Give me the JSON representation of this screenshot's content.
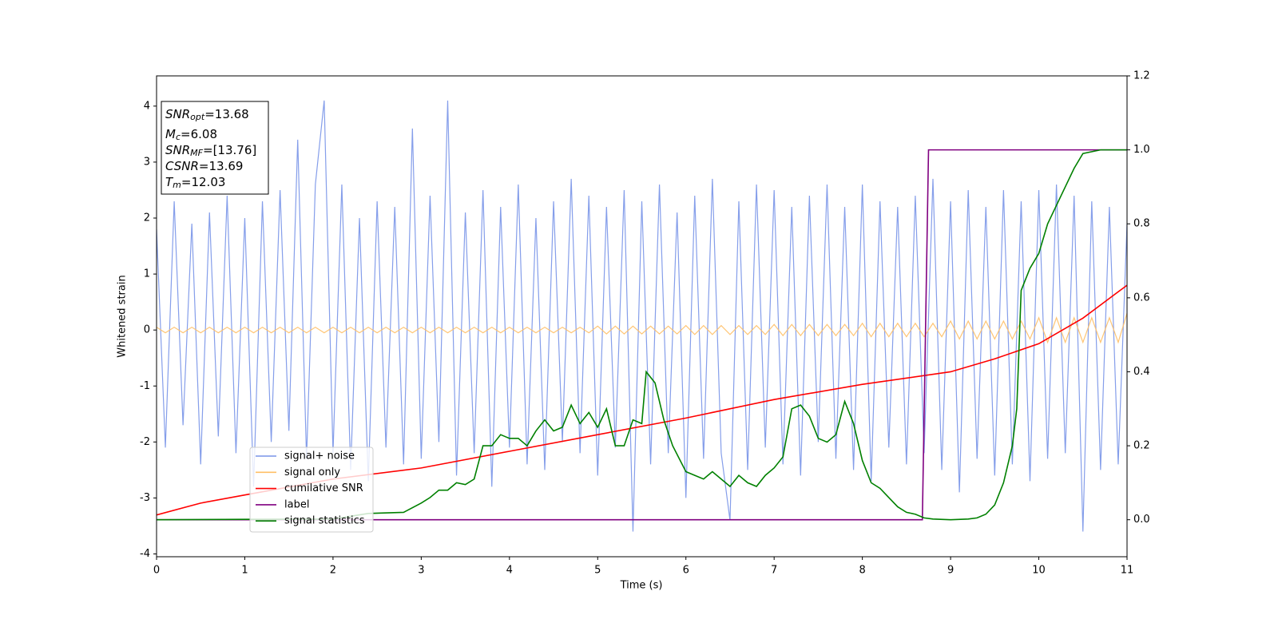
{
  "chart_data": {
    "type": "line",
    "xlabel": "Time (s)",
    "ylabel": "Whitened strain",
    "xlim": [
      0,
      11
    ],
    "ylim": [
      -4.05,
      4.54
    ],
    "y2lim": [
      -0.1,
      1.2
    ],
    "xticks": [
      0,
      1,
      2,
      3,
      4,
      5,
      6,
      7,
      8,
      9,
      10,
      11
    ],
    "yticks": [
      -4,
      -3,
      -2,
      -1,
      0,
      1,
      2,
      3,
      4
    ],
    "y2ticks": [
      {
        "value": 0,
        "label": "0.0"
      },
      0.2,
      0.4,
      0.6,
      0.8,
      {
        "value": 1,
        "label": "1.0"
      },
      1.2
    ],
    "annotations": [
      {
        "symbol": "SNR",
        "subscript": "opt",
        "text": "=13.68"
      },
      {
        "symbol": "M",
        "subscript": "c",
        "text": "=6.08"
      },
      {
        "symbol": "SNR",
        "subscript": "MF",
        "text": "=[13.76]"
      },
      {
        "symbol": "CSNR",
        "text": "=13.69"
      },
      {
        "symbol": "T",
        "subscript": "m",
        "text": "=12.03"
      }
    ],
    "series": [
      {
        "name": "signal+ noise",
        "color": "#7893e8",
        "x": [
          0,
          0.1,
          0.2,
          0.3,
          0.4,
          0.5,
          0.6,
          0.7,
          0.8,
          0.9,
          1,
          1.1,
          1.2,
          1.3,
          1.4,
          1.5,
          1.6,
          1.7,
          1.8,
          1.9,
          2,
          2.1,
          2.2,
          2.3,
          2.4,
          2.5,
          2.6,
          2.7,
          2.8,
          2.9,
          3,
          3.1,
          3.2,
          3.3,
          3.4,
          3.5,
          3.6,
          3.7,
          3.8,
          3.9,
          4,
          4.1,
          4.2,
          4.3,
          4.4,
          4.5,
          4.6,
          4.7,
          4.8,
          4.9,
          5,
          5.1,
          5.2,
          5.3,
          5.4,
          5.5,
          5.6,
          5.7,
          5.8,
          5.9,
          6,
          6.1,
          6.2,
          6.3,
          6.4,
          6.5,
          6.6,
          6.7,
          6.8,
          6.9,
          7,
          7.1,
          7.2,
          7.3,
          7.4,
          7.5,
          7.6,
          7.7,
          7.8,
          7.9,
          8,
          8.1,
          8.2,
          8.3,
          8.4,
          8.5,
          8.6,
          8.7,
          8.8,
          8.9,
          9,
          9.1,
          9.2,
          9.3,
          9.4,
          9.5,
          9.6,
          9.7,
          9.8,
          9.9,
          10,
          10.1,
          10.2,
          10.3,
          10.4,
          10.5,
          10.6,
          10.7,
          10.8,
          10.9,
          11
        ],
        "values": [
          1.8,
          -2.1,
          2.3,
          -1.7,
          1.9,
          -2.4,
          2.1,
          -1.9,
          2.4,
          -2.2,
          2.0,
          -2.8,
          2.3,
          -2.0,
          2.5,
          -1.8,
          3.4,
          -2.3,
          2.6,
          4.1,
          -2.2,
          2.6,
          -2.5,
          2.0,
          -2.7,
          2.3,
          -2.1,
          2.2,
          -2.4,
          3.6,
          -2.3,
          2.4,
          -2.0,
          4.1,
          -2.6,
          2.1,
          -2.2,
          2.5,
          -2.8,
          2.2,
          -2.1,
          2.6,
          -2.4,
          2.0,
          -2.5,
          2.3,
          -2.0,
          2.7,
          -2.2,
          2.4,
          -2.6,
          2.2,
          -2.1,
          2.5,
          -3.6,
          2.3,
          -2.4,
          2.6,
          -2.2,
          2.1,
          -3.0,
          2.4,
          -2.3,
          2.7,
          -2.2,
          -3.4,
          2.3,
          -2.5,
          2.6,
          -2.1,
          2.5,
          -2.4,
          2.2,
          -2.6,
          2.4,
          -2.0,
          2.6,
          -2.3,
          2.2,
          -2.5,
          2.6,
          -2.7,
          2.3,
          -2.1,
          2.2,
          -2.4,
          2.4,
          -2.2,
          2.7,
          -2.5,
          2.3,
          -2.9,
          2.5,
          -2.3,
          2.2,
          -2.6,
          2.5,
          -2.4,
          2.3,
          -2.7,
          2.5,
          -2.3,
          2.6,
          -2.2,
          2.4,
          -3.6,
          2.3,
          -2.5,
          2.2,
          -2.4,
          1.9
        ]
      },
      {
        "name": "signal only",
        "color": "#ffbf66",
        "x": [
          0,
          0.1,
          0.2,
          0.3,
          0.4,
          0.5,
          0.6,
          0.7,
          0.8,
          0.9,
          1,
          1.1,
          1.2,
          1.3,
          1.4,
          1.5,
          1.6,
          1.7,
          1.8,
          1.9,
          2,
          2.1,
          2.2,
          2.3,
          2.4,
          2.5,
          2.6,
          2.7,
          2.8,
          2.9,
          3,
          3.1,
          3.2,
          3.3,
          3.4,
          3.5,
          3.6,
          3.7,
          3.8,
          3.9,
          4,
          4.1,
          4.2,
          4.3,
          4.4,
          4.5,
          4.6,
          4.7,
          4.8,
          4.9,
          5,
          5.1,
          5.2,
          5.3,
          5.4,
          5.5,
          5.6,
          5.7,
          5.8,
          5.9,
          6,
          6.1,
          6.2,
          6.3,
          6.4,
          6.5,
          6.6,
          6.7,
          6.8,
          6.9,
          7,
          7.1,
          7.2,
          7.3,
          7.4,
          7.5,
          7.6,
          7.7,
          7.8,
          7.9,
          8,
          8.1,
          8.2,
          8.3,
          8.4,
          8.5,
          8.6,
          8.7,
          8.8,
          8.9,
          9,
          9.1,
          9.2,
          9.3,
          9.4,
          9.5,
          9.6,
          9.7,
          9.8,
          9.9,
          10,
          10.1,
          10.2,
          10.3,
          10.4,
          10.5,
          10.6,
          10.7,
          10.8,
          10.9,
          11
        ],
        "values": [
          0.05,
          -0.05,
          0.05,
          -0.05,
          0.05,
          -0.05,
          0.05,
          -0.05,
          0.05,
          -0.05,
          0.05,
          -0.05,
          0.05,
          -0.05,
          0.05,
          -0.05,
          0.05,
          -0.05,
          0.05,
          -0.05,
          0.05,
          -0.05,
          0.05,
          -0.05,
          0.05,
          -0.05,
          0.05,
          -0.05,
          0.05,
          -0.05,
          0.05,
          -0.05,
          0.05,
          -0.05,
          0.05,
          -0.05,
          0.05,
          -0.05,
          0.05,
          -0.05,
          0.05,
          -0.05,
          0.05,
          -0.05,
          0.05,
          -0.05,
          0.05,
          -0.05,
          0.05,
          -0.05,
          0.07,
          -0.07,
          0.07,
          -0.07,
          0.07,
          -0.07,
          0.07,
          -0.07,
          0.07,
          -0.07,
          0.08,
          -0.08,
          0.08,
          -0.08,
          0.08,
          -0.08,
          0.08,
          -0.08,
          0.08,
          -0.08,
          0.1,
          -0.1,
          0.1,
          -0.1,
          0.1,
          -0.1,
          0.1,
          -0.1,
          0.1,
          -0.1,
          0.12,
          -0.12,
          0.12,
          -0.12,
          0.12,
          -0.12,
          0.12,
          -0.12,
          0.12,
          -0.12,
          0.16,
          -0.16,
          0.16,
          -0.16,
          0.16,
          -0.16,
          0.16,
          -0.16,
          0.16,
          -0.16,
          0.22,
          -0.22,
          0.22,
          -0.22,
          0.22,
          -0.22,
          0.22,
          -0.22,
          0.22,
          -0.22,
          0.3
        ]
      },
      {
        "name": "cumilative SNR",
        "color": "#ff0000",
        "axis": "y2",
        "x": [
          0,
          0.5,
          1,
          2,
          3,
          4,
          5,
          6,
          7,
          8,
          9,
          9.5,
          10,
          10.5,
          11
        ],
        "values": [
          0.013,
          0.045,
          0.067,
          0.11,
          0.14,
          0.185,
          0.23,
          0.275,
          0.325,
          0.366,
          0.4,
          0.435,
          0.476,
          0.545,
          0.634
        ]
      },
      {
        "name": "label",
        "color": "#800080",
        "axis": "y2",
        "x": [
          0,
          8.68,
          8.75,
          11
        ],
        "values": [
          0,
          0,
          1,
          1
        ]
      },
      {
        "name": "signal statistics",
        "color": "#008000",
        "axis": "y2",
        "x": [
          0,
          1,
          2,
          2.4,
          2.8,
          3,
          3.1,
          3.2,
          3.3,
          3.4,
          3.5,
          3.6,
          3.7,
          3.8,
          3.9,
          4,
          4.1,
          4.2,
          4.3,
          4.4,
          4.5,
          4.6,
          4.7,
          4.8,
          4.9,
          5,
          5.1,
          5.2,
          5.3,
          5.4,
          5.5,
          5.55,
          5.65,
          5.75,
          5.85,
          6,
          6.1,
          6.2,
          6.3,
          6.4,
          6.5,
          6.6,
          6.7,
          6.8,
          6.9,
          7,
          7.1,
          7.2,
          7.3,
          7.4,
          7.5,
          7.6,
          7.7,
          7.8,
          7.9,
          8,
          8.1,
          8.2,
          8.3,
          8.4,
          8.5,
          8.6,
          8.7,
          8.8,
          9,
          9.2,
          9.3,
          9.4,
          9.5,
          9.6,
          9.7,
          9.75,
          9.8,
          9.9,
          10,
          10.1,
          10.2,
          10.3,
          10.4,
          10.5,
          10.7,
          11
        ],
        "values": [
          0,
          0.001,
          0.002,
          0.017,
          0.02,
          0.045,
          0.06,
          0.08,
          0.08,
          0.1,
          0.095,
          0.11,
          0.2,
          0.2,
          0.23,
          0.22,
          0.22,
          0.2,
          0.24,
          0.27,
          0.24,
          0.25,
          0.31,
          0.26,
          0.29,
          0.25,
          0.3,
          0.2,
          0.2,
          0.27,
          0.26,
          0.4,
          0.37,
          0.27,
          0.2,
          0.13,
          0.12,
          0.11,
          0.13,
          0.11,
          0.09,
          0.12,
          0.1,
          0.09,
          0.12,
          0.14,
          0.17,
          0.3,
          0.31,
          0.28,
          0.22,
          0.21,
          0.23,
          0.32,
          0.26,
          0.16,
          0.1,
          0.085,
          0.06,
          0.035,
          0.02,
          0.015,
          0.005,
          0.002,
          0,
          0.002,
          0.005,
          0.015,
          0.04,
          0.1,
          0.2,
          0.3,
          0.62,
          0.68,
          0.72,
          0.8,
          0.85,
          0.9,
          0.95,
          0.99,
          1,
          1
        ]
      }
    ]
  }
}
